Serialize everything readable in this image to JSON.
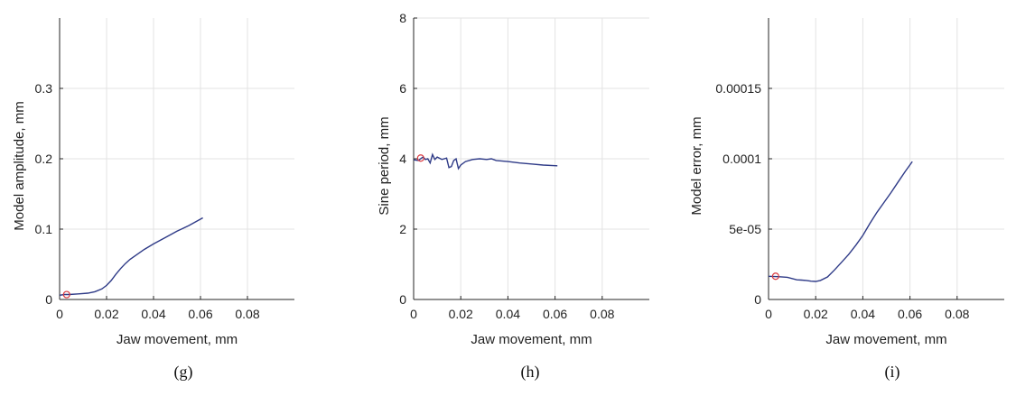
{
  "chart_data": [
    {
      "type": "line",
      "caption": "(g)",
      "xlabel": "Jaw movement, mm",
      "ylabel": "Model amplitude, mm",
      "xlim": [
        0,
        0.1
      ],
      "ylim": [
        0,
        0.4
      ],
      "xticks": [
        0,
        0.02,
        0.04,
        0.06,
        0.08
      ],
      "xtick_labels": [
        "0",
        "0.02",
        "0.04",
        "0.06",
        "0.08"
      ],
      "yticks": [
        0,
        0.1,
        0.2,
        0.3
      ],
      "ytick_labels": [
        "0",
        "0.1",
        "0.2",
        "0.3"
      ],
      "grid": true,
      "color": "#2e3a87",
      "series": [
        {
          "x": [
            0,
            0.002,
            0.004,
            0.008,
            0.012,
            0.015,
            0.018,
            0.02,
            0.022,
            0.024,
            0.026,
            0.028,
            0.03,
            0.033,
            0.036,
            0.04,
            0.045,
            0.05,
            0.055,
            0.061
          ],
          "y": [
            0.006,
            0.007,
            0.007,
            0.008,
            0.009,
            0.011,
            0.015,
            0.02,
            0.027,
            0.036,
            0.044,
            0.051,
            0.057,
            0.064,
            0.071,
            0.079,
            0.088,
            0.097,
            0.105,
            0.116
          ]
        }
      ],
      "marker": {
        "x": 0.003,
        "y": 0.007,
        "color": "#d9393f"
      }
    },
    {
      "type": "line",
      "caption": "(h)",
      "xlabel": "Jaw movement, mm",
      "ylabel": "Sine period, mm",
      "xlim": [
        0,
        0.1
      ],
      "ylim": [
        0,
        8
      ],
      "xticks": [
        0,
        0.02,
        0.04,
        0.06,
        0.08
      ],
      "xtick_labels": [
        "0",
        "0.02",
        "0.04",
        "0.06",
        "0.08"
      ],
      "yticks": [
        0,
        2,
        4,
        6,
        8
      ],
      "ytick_labels": [
        "0",
        "2",
        "4",
        "6",
        "8"
      ],
      "grid": true,
      "color": "#2e3a87",
      "series": [
        {
          "x": [
            0,
            0.002,
            0.004,
            0.005,
            0.006,
            0.007,
            0.008,
            0.009,
            0.01,
            0.012,
            0.014,
            0.015,
            0.016,
            0.017,
            0.018,
            0.019,
            0.02,
            0.022,
            0.025,
            0.028,
            0.031,
            0.033,
            0.035,
            0.04,
            0.045,
            0.05,
            0.055,
            0.061
          ],
          "y": [
            3.97,
            3.95,
            4.05,
            3.98,
            4.0,
            3.88,
            4.12,
            3.98,
            4.05,
            3.98,
            4.02,
            3.75,
            3.78,
            3.95,
            4.0,
            3.72,
            3.82,
            3.92,
            3.98,
            4.0,
            3.98,
            4.0,
            3.95,
            3.92,
            3.88,
            3.85,
            3.82,
            3.8
          ]
        }
      ],
      "marker": {
        "x": 0.003,
        "y": 4.02,
        "color": "#d9393f"
      }
    },
    {
      "type": "line",
      "caption": "(i)",
      "xlabel": "Jaw movement, mm",
      "ylabel": "Model error, mm",
      "xlim": [
        0,
        0.1
      ],
      "ylim": [
        0,
        0.0002
      ],
      "xticks": [
        0,
        0.02,
        0.04,
        0.06,
        0.08
      ],
      "xtick_labels": [
        "0",
        "0.02",
        "0.04",
        "0.06",
        "0.08"
      ],
      "yticks": [
        0,
        5e-05,
        0.0001,
        0.00015
      ],
      "ytick_labels": [
        "0",
        "5e-05",
        "0.0001",
        "0.00015"
      ],
      "grid": true,
      "color": "#2e3a87",
      "series": [
        {
          "x": [
            0,
            0.004,
            0.008,
            0.012,
            0.014,
            0.016,
            0.018,
            0.02,
            0.022,
            0.025,
            0.028,
            0.031,
            0.034,
            0.037,
            0.04,
            0.043,
            0.046,
            0.049,
            0.052,
            0.055,
            0.058,
            0.061
          ],
          "y": [
            1.65e-05,
            1.62e-05,
            1.58e-05,
            1.4e-05,
            1.38e-05,
            1.35e-05,
            1.3e-05,
            1.28e-05,
            1.35e-05,
            1.6e-05,
            2.1e-05,
            2.65e-05,
            3.2e-05,
            3.85e-05,
            4.55e-05,
            5.4e-05,
            6.2e-05,
            6.9e-05,
            7.6e-05,
            8.35e-05,
            9.1e-05,
            9.8e-05
          ]
        }
      ],
      "marker": {
        "x": 0.003,
        "y": 1.65e-05,
        "color": "#d9393f"
      }
    }
  ]
}
